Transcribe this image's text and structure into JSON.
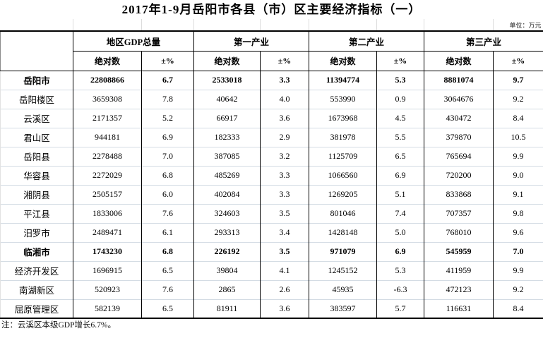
{
  "title": "2017年1-9月岳阳市各县（市）区主要经济指标（一）",
  "unit_label": "单位：万元",
  "note": "注：云溪区本级GDP增长6.7%。",
  "table": {
    "groups": [
      "地区GDP总量",
      "第一产业",
      "第二产业",
      "第三产业"
    ],
    "subheaders": [
      "绝对数",
      "±%"
    ],
    "rows": [
      {
        "name": "岳阳市",
        "bold": true,
        "values": [
          "22808866",
          "6.7",
          "2533018",
          "3.3",
          "11394774",
          "5.3",
          "8881074",
          "9.7"
        ]
      },
      {
        "name": "岳阳楼区",
        "bold": false,
        "values": [
          "3659308",
          "7.8",
          "40642",
          "4.0",
          "553990",
          "0.9",
          "3064676",
          "9.2"
        ]
      },
      {
        "name": "云溪区",
        "bold": false,
        "values": [
          "2171357",
          "5.2",
          "66917",
          "3.6",
          "1673968",
          "4.5",
          "430472",
          "8.4"
        ]
      },
      {
        "name": "君山区",
        "bold": false,
        "values": [
          "944181",
          "6.9",
          "182333",
          "2.9",
          "381978",
          "5.5",
          "379870",
          "10.5"
        ]
      },
      {
        "name": "岳阳县",
        "bold": false,
        "values": [
          "2278488",
          "7.0",
          "387085",
          "3.2",
          "1125709",
          "6.5",
          "765694",
          "9.9"
        ]
      },
      {
        "name": "华容县",
        "bold": false,
        "values": [
          "2272029",
          "6.8",
          "485269",
          "3.3",
          "1066560",
          "6.9",
          "720200",
          "9.0"
        ]
      },
      {
        "name": "湘阴县",
        "bold": false,
        "values": [
          "2505157",
          "6.0",
          "402084",
          "3.3",
          "1269205",
          "5.1",
          "833868",
          "9.1"
        ]
      },
      {
        "name": "平江县",
        "bold": false,
        "values": [
          "1833006",
          "7.6",
          "324603",
          "3.5",
          "801046",
          "7.4",
          "707357",
          "9.8"
        ]
      },
      {
        "name": "汨罗市",
        "bold": false,
        "values": [
          "2489471",
          "6.1",
          "293313",
          "3.4",
          "1428148",
          "5.0",
          "768010",
          "9.6"
        ]
      },
      {
        "name": "临湘市",
        "bold": true,
        "values": [
          "1743230",
          "6.8",
          "226192",
          "3.5",
          "971079",
          "6.9",
          "545959",
          "7.0"
        ]
      },
      {
        "name": "经济开发区",
        "bold": false,
        "values": [
          "1696915",
          "6.5",
          "39804",
          "4.1",
          "1245152",
          "5.3",
          "411959",
          "9.9"
        ]
      },
      {
        "name": "南湖新区",
        "bold": false,
        "values": [
          "520923",
          "7.6",
          "2865",
          "2.6",
          "45935",
          "-6.3",
          "472123",
          "9.2"
        ]
      },
      {
        "name": "屈原管理区",
        "bold": false,
        "values": [
          "582139",
          "6.5",
          "81911",
          "3.6",
          "383597",
          "5.7",
          "116631",
          "8.4"
        ]
      }
    ]
  }
}
